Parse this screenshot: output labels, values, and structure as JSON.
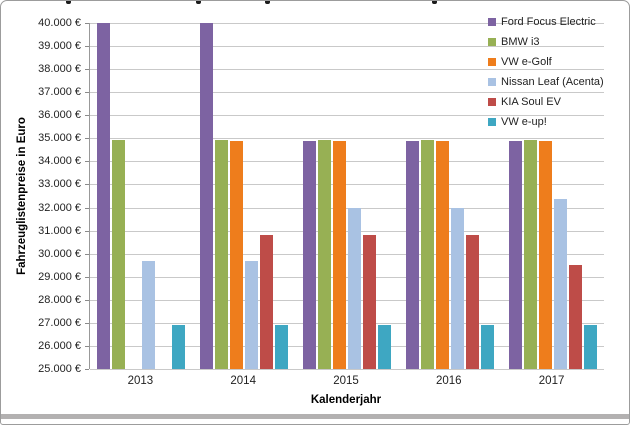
{
  "axes": {
    "y_title": "Fahrzeuglistenpreise in Euro",
    "x_title": "Kalenderjahr",
    "ytick_labels": [
      "40.000 €",
      "39.000 €",
      "38.000 €",
      "37.000 €",
      "36.000 €",
      "35.000 €",
      "34.000 €",
      "33.000 €",
      "32.000 €",
      "31.000 €",
      "30.000 €",
      "29.000 €",
      "28.000 €",
      "27.000 €",
      "26.000 €",
      "25.000 €"
    ]
  },
  "colors": {
    "gridline": "#c9c9c9",
    "axis_line": "#999999",
    "frame_border": "#9c9c9c",
    "bottom_band": "#b3b1b1",
    "text": "#1f1f1f"
  },
  "chart_data": {
    "type": "bar",
    "title": "",
    "xlabel": "Kalenderjahr",
    "ylabel": "Fahrzeuglistenpreise in Euro",
    "categories": [
      "2013",
      "2014",
      "2015",
      "2016",
      "2017"
    ],
    "series": [
      {
        "name": "Ford Focus Electric",
        "color": "#7d63a2",
        "values": [
          39990,
          39990,
          34900,
          34900,
          34900
        ]
      },
      {
        "name": "BMW i3",
        "color": "#97b054",
        "values": [
          34950,
          34950,
          34950,
          34950,
          34950
        ]
      },
      {
        "name": "VW e-Golf",
        "color": "#ee7d1c",
        "values": [
          null,
          34900,
          34900,
          34900,
          34900
        ]
      },
      {
        "name": "Nissan Leaf (Acenta)",
        "color": "#a9c2e3",
        "values": [
          29690,
          29690,
          31990,
          31990,
          32365
        ]
      },
      {
        "name": "KIA Soul EV",
        "color": "#be4c48",
        "values": [
          null,
          30790,
          30790,
          30790,
          29490
        ]
      },
      {
        "name": "VW e-up!",
        "color": "#3ea7c2",
        "values": [
          26900,
          26900,
          26900,
          26900,
          26900
        ]
      }
    ],
    "ylim": [
      25000,
      40000
    ],
    "ytick_step": 1000,
    "grid": "horizontal",
    "legend_position": "top-right"
  }
}
